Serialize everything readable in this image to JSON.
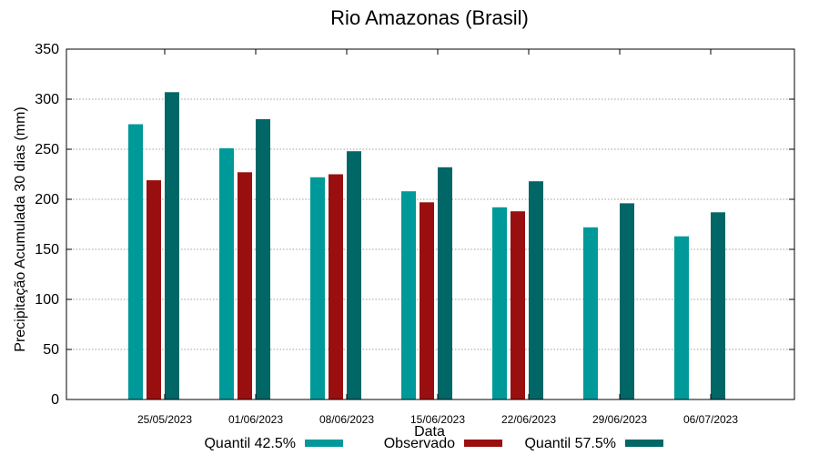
{
  "chart_data": {
    "type": "bar",
    "title": "Rio Amazonas (Brasil)",
    "xlabel": "Data",
    "ylabel": "Precipitação Acumulada 30 dias (mm)",
    "ylim": [
      0,
      350
    ],
    "yticks": [
      0,
      50,
      100,
      150,
      200,
      250,
      300,
      350
    ],
    "grid": true,
    "legend_position": "bottom",
    "categories": [
      "25/05/2023",
      "01/06/2023",
      "08/06/2023",
      "15/06/2023",
      "22/06/2023",
      "29/06/2023",
      "06/07/2023"
    ],
    "series": [
      {
        "name": "Quantil 42.5%",
        "color": "#009999",
        "values": [
          275,
          251,
          222,
          208,
          192,
          172,
          163
        ]
      },
      {
        "name": "Observado",
        "color": "#990f0f",
        "values": [
          219,
          227,
          225,
          197,
          188,
          null,
          null
        ]
      },
      {
        "name": "Quantil 57.5%",
        "color": "#006666",
        "values": [
          307,
          280,
          248,
          232,
          218,
          196,
          187
        ]
      }
    ]
  }
}
